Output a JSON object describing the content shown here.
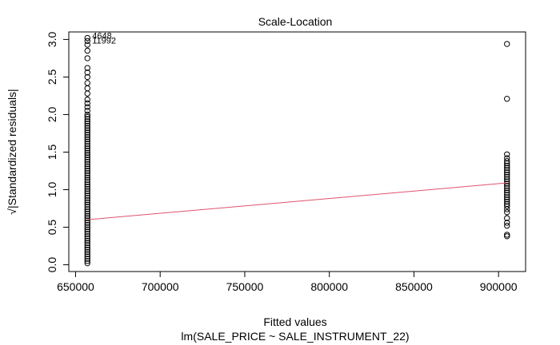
{
  "chart_data": {
    "type": "scatter",
    "title": "Scale-Location",
    "xlabel": "Fitted values",
    "ylabel": "√|Standardized residuals|",
    "subtitle": "lm(SALE_PRICE ~ SALE_INSTRUMENT_22)",
    "xlim": [
      646000,
      916000
    ],
    "ylim": [
      -0.09,
      3.1
    ],
    "x_ticks": [
      650000,
      700000,
      750000,
      800000,
      850000,
      900000
    ],
    "y_ticks": [
      0.0,
      0.5,
      1.0,
      1.5,
      2.0,
      2.5,
      3.0
    ],
    "groups": [
      {
        "x": 657000,
        "y": [
          0.02,
          0.05,
          0.08,
          0.11,
          0.14,
          0.17,
          0.2,
          0.23,
          0.26,
          0.29,
          0.32,
          0.35,
          0.38,
          0.41,
          0.44,
          0.47,
          0.5,
          0.53,
          0.56,
          0.59,
          0.62,
          0.65,
          0.68,
          0.71,
          0.74,
          0.77,
          0.8,
          0.83,
          0.86,
          0.89,
          0.92,
          0.95,
          0.98,
          1.01,
          1.04,
          1.07,
          1.1,
          1.13,
          1.16,
          1.19,
          1.22,
          1.25,
          1.28,
          1.31,
          1.34,
          1.37,
          1.4,
          1.43,
          1.46,
          1.49,
          1.52,
          1.55,
          1.58,
          1.61,
          1.64,
          1.67,
          1.7,
          1.73,
          1.76,
          1.79,
          1.82,
          1.85,
          1.88,
          1.91,
          1.94,
          1.97,
          2.0,
          2.05,
          2.1,
          2.15,
          2.2,
          2.28,
          2.35,
          2.42,
          2.5,
          2.56,
          2.62,
          2.75,
          2.85,
          2.93,
          2.98,
          3.02
        ]
      },
      {
        "x": 905000,
        "y": [
          0.38,
          0.4,
          0.52,
          0.56,
          0.62,
          0.7,
          0.74,
          0.78,
          0.81,
          0.84,
          0.87,
          0.9,
          0.93,
          0.96,
          0.99,
          1.02,
          1.05,
          1.08,
          1.11,
          1.14,
          1.17,
          1.2,
          1.23,
          1.26,
          1.29,
          1.32,
          1.35,
          1.38,
          1.42,
          1.47,
          2.21,
          2.94
        ]
      }
    ],
    "trend_line": {
      "x": [
        657000,
        905000
      ],
      "y": [
        0.6,
        1.09
      ],
      "color": "#DF536B"
    },
    "point_labels": [
      {
        "text": "4648",
        "x": 657000,
        "y": 3.05
      },
      {
        "text": "11992",
        "x": 657000,
        "y": 2.99
      }
    ]
  }
}
